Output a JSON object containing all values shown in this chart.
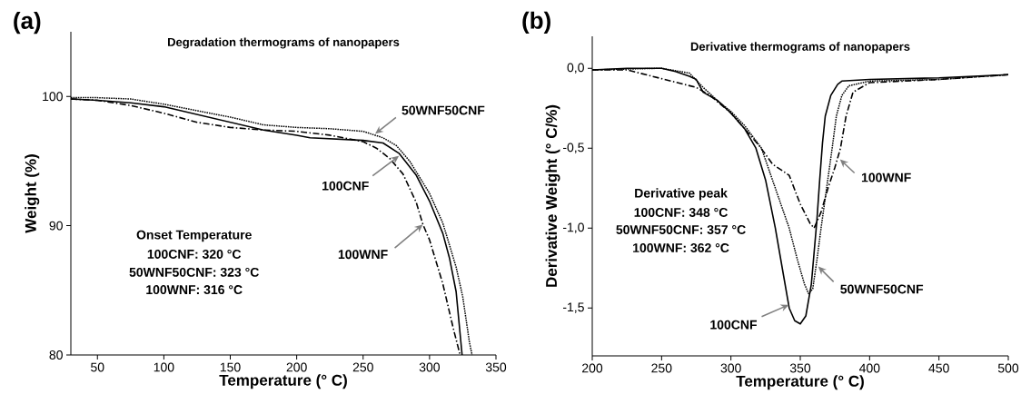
{
  "chart_data": [
    {
      "type": "line",
      "title": "Degradation thermograms of nanopapers",
      "xlabel": "Temperature (° C)",
      "ylabel": "Weight (%)",
      "xlim": [
        30,
        350
      ],
      "ylim": [
        80,
        105
      ],
      "xticks": [
        50,
        100,
        150,
        200,
        250,
        300,
        350
      ],
      "yticks": [
        80,
        90,
        100
      ],
      "annotations": [
        "(a)",
        "Onset Temperature",
        "100CNF: 320 °C",
        "50WNF50CNF: 323 °C",
        "100WNF: 316 °C",
        {
          "text": "50WNF50CNF",
          "x": 259,
          "y": 97.1
        },
        {
          "text": "100CNF",
          "x": 277,
          "y": 95.4
        },
        {
          "text": "100WNF",
          "x": 295,
          "y": 90.1
        }
      ],
      "series": [
        {
          "color": "#000000",
          "line_style": "solid",
          "x": [
            30,
            50,
            75,
            100,
            125,
            150,
            175,
            200,
            210,
            250,
            265,
            277,
            290,
            300,
            310,
            315,
            320,
            324.5
          ],
          "values": [
            99.8,
            99.7,
            99.5,
            99.2,
            98.6,
            98.0,
            97.4,
            97.0,
            96.8,
            96.6,
            96.4,
            95.6,
            93.9,
            91.9,
            89.4,
            87.5,
            84.9,
            80
          ]
        },
        {
          "color": "#000000",
          "line_style": "dotted",
          "x": [
            30,
            50,
            75,
            100,
            125,
            150,
            175,
            200,
            225,
            250,
            265,
            275,
            285,
            300,
            310,
            320,
            325,
            330,
            332
          ],
          "values": [
            99.9,
            99.9,
            99.8,
            99.4,
            98.9,
            98.4,
            97.8,
            97.6,
            97.5,
            97.3,
            96.8,
            96.2,
            95.0,
            92.5,
            90.2,
            86.8,
            84.5,
            81.0,
            80
          ]
        },
        {
          "color": "#000000",
          "line_style": "dashdot",
          "x": [
            30,
            50,
            75,
            100,
            125,
            150,
            175,
            200,
            225,
            250,
            260,
            270,
            280,
            290,
            295,
            300,
            310,
            318,
            323
          ],
          "values": [
            99.8,
            99.7,
            99.3,
            98.7,
            98.0,
            97.6,
            97.4,
            97.3,
            97.0,
            96.5,
            96.0,
            95.2,
            94.0,
            91.8,
            90.1,
            88.9,
            85.5,
            82.0,
            80
          ]
        }
      ]
    },
    {
      "type": "line",
      "title": "Derivative thermograms of nanopapers",
      "xlabel": "Temperature (° C)",
      "ylabel": "Derivative Weight (° C/%)",
      "xlim": [
        200,
        500
      ],
      "ylim": [
        -1.8,
        0.2
      ],
      "xticks": [
        200,
        250,
        300,
        350,
        400,
        450,
        500
      ],
      "yticks": [
        {
          "value": 0,
          "label": "0,0"
        },
        {
          "value": -0.5,
          "label": "-0,5"
        },
        {
          "value": -1,
          "label": "-1,0"
        },
        {
          "value": -1.5,
          "label": "-1,5"
        }
      ],
      "annotations": [
        "(b)",
        "Derivative peak",
        "100CNF: 348 °C",
        "50WNF50CNF: 357 °C",
        "100WNF: 362 °C",
        {
          "text": "100WNF",
          "x": 378.6,
          "y": -0.57
        },
        {
          "text": "50WNF50CNF",
          "x": 362.9,
          "y": -1.24
        },
        {
          "text": "100CNF",
          "x": 341.8,
          "y": -1.48
        }
      ],
      "series": [
        {
          "color": "#000000",
          "line_style": "solid",
          "x": [
            200,
            225,
            250,
            260,
            270,
            275,
            280,
            290,
            300,
            310,
            318,
            325,
            332,
            338,
            342,
            346,
            350,
            354,
            356,
            358,
            360,
            362,
            364,
            366,
            368,
            372,
            377,
            380,
            400,
            450,
            500
          ],
          "values": [
            -0.01,
            0.0,
            0.0,
            -0.02,
            -0.05,
            -0.07,
            -0.15,
            -0.2,
            -0.28,
            -0.38,
            -0.5,
            -0.7,
            -1.0,
            -1.3,
            -1.5,
            -1.58,
            -1.6,
            -1.55,
            -1.45,
            -1.35,
            -1.15,
            -0.95,
            -0.7,
            -0.47,
            -0.3,
            -0.17,
            -0.1,
            -0.08,
            -0.07,
            -0.06,
            -0.04
          ]
        },
        {
          "color": "#000000",
          "line_style": "dotted",
          "x": [
            200,
            250,
            270,
            280,
            290,
            300,
            310,
            322,
            330,
            336,
            342,
            348,
            353,
            356,
            359,
            362,
            365,
            369,
            373,
            376,
            380,
            385,
            400,
            450,
            500
          ],
          "values": [
            -0.01,
            0.0,
            -0.03,
            -0.12,
            -0.2,
            -0.27,
            -0.36,
            -0.5,
            -0.7,
            -0.85,
            -1.0,
            -1.2,
            -1.35,
            -1.41,
            -1.38,
            -1.2,
            -1.0,
            -0.75,
            -0.5,
            -0.3,
            -0.17,
            -0.11,
            -0.08,
            -0.07,
            -0.04
          ]
        },
        {
          "color": "#000000",
          "line_style": "dashdot",
          "x": [
            200,
            225,
            250,
            275,
            285,
            300,
            320,
            330,
            342,
            350,
            357,
            360,
            365,
            370,
            375,
            379,
            383,
            388,
            400,
            425,
            450,
            500
          ],
          "values": [
            -0.01,
            -0.01,
            -0.065,
            -0.12,
            -0.17,
            -0.28,
            -0.48,
            -0.6,
            -0.67,
            -0.85,
            -0.97,
            -1.0,
            -0.9,
            -0.75,
            -0.62,
            -0.5,
            -0.3,
            -0.15,
            -0.09,
            -0.08,
            -0.07,
            -0.04
          ]
        }
      ]
    }
  ]
}
